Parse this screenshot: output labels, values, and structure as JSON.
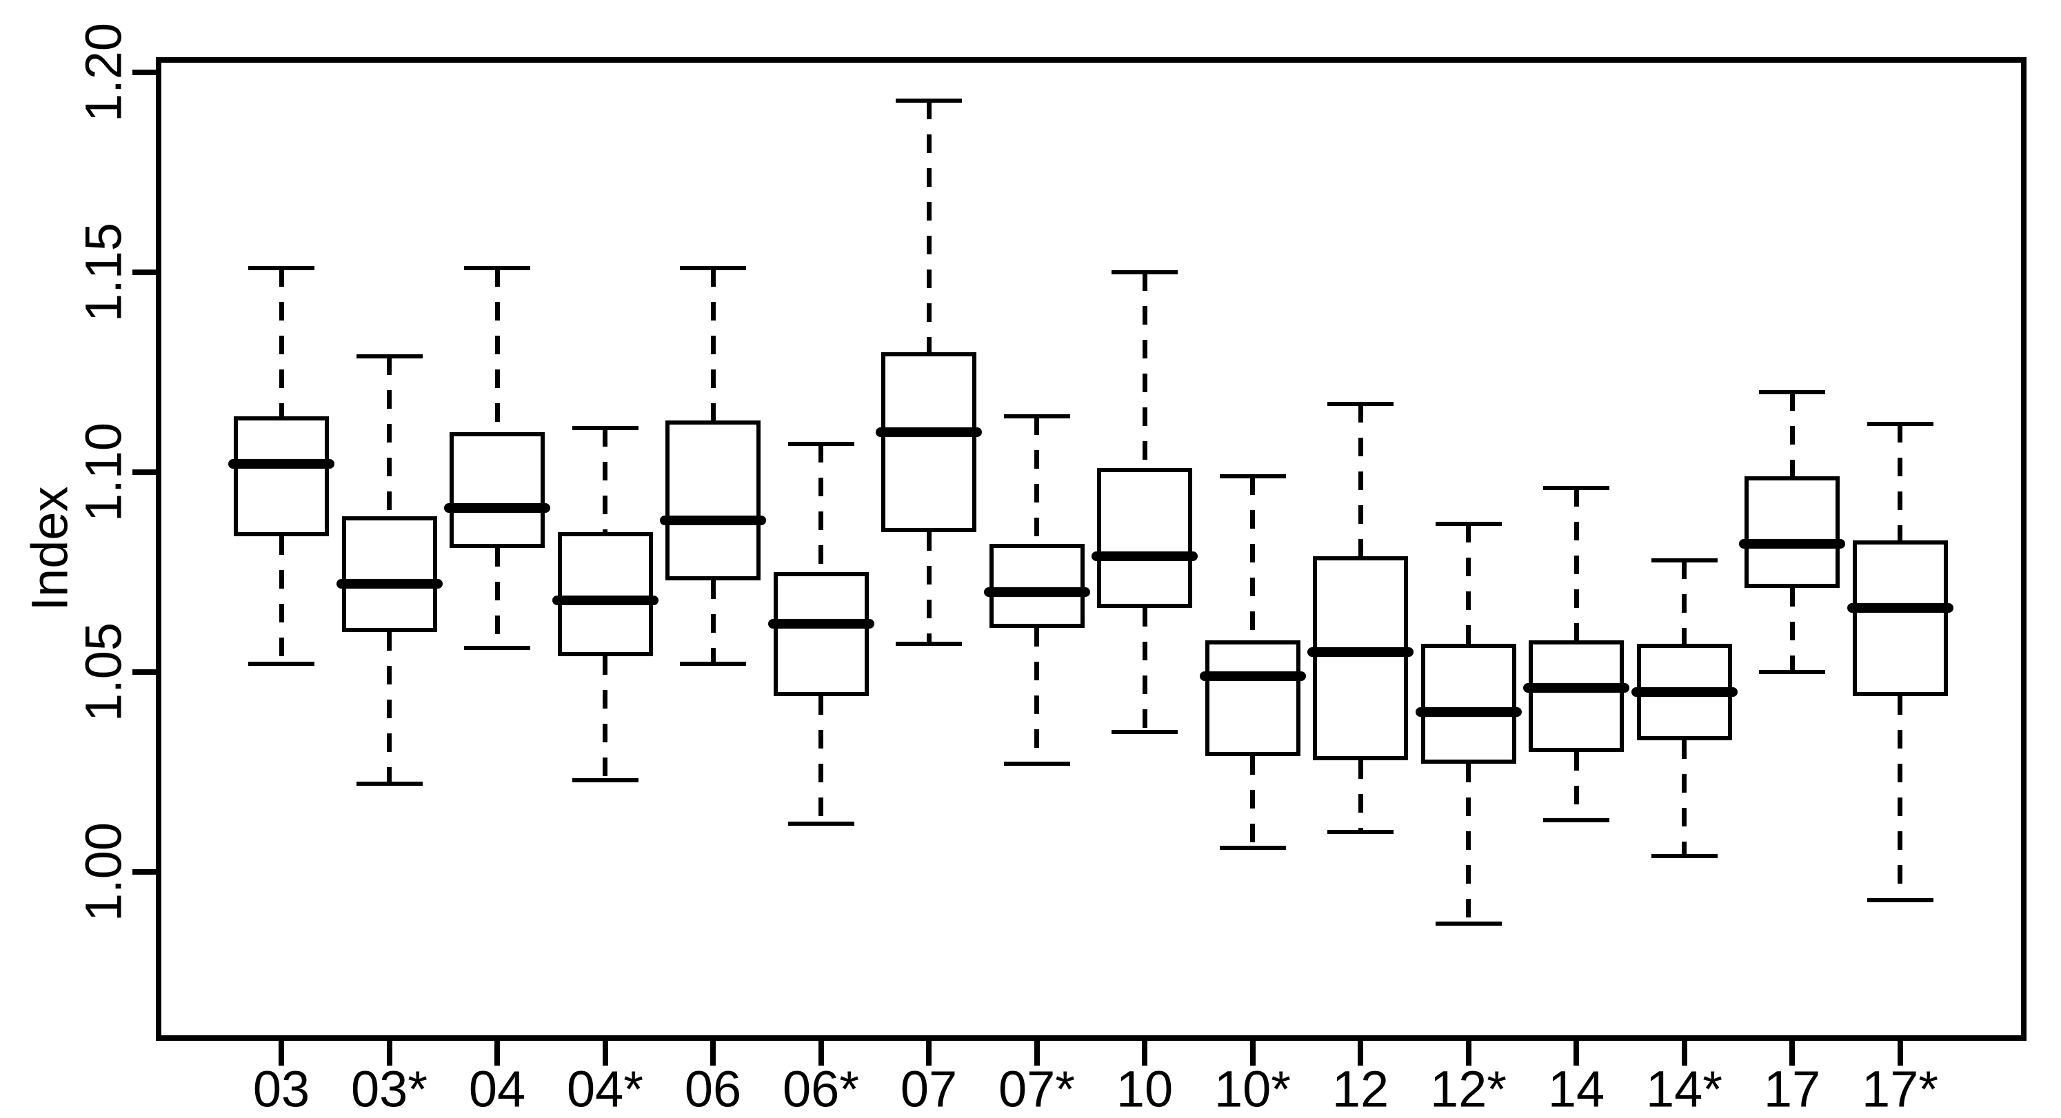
{
  "figure": {
    "background_color": "#ffffff",
    "axis_color": "#000000",
    "y_axis_title": "Index"
  },
  "chart_data": {
    "type": "boxplot",
    "title": "",
    "xlabel": "",
    "ylabel": "Index",
    "grid": false,
    "legend": false,
    "orientation": "vertical",
    "whisker_style": "dashed",
    "ylim": [
      0.958,
      1.203
    ],
    "y_ticks": [
      1.0,
      1.05,
      1.1,
      1.15,
      1.2
    ],
    "y_tick_labels": [
      "1.00",
      "1.05",
      "1.10",
      "1.15",
      "1.20"
    ],
    "categories": [
      "03",
      "03*",
      "04",
      "04*",
      "06",
      "06*",
      "07",
      "07*",
      "10",
      "10*",
      "12",
      "12*",
      "14",
      "14*",
      "17",
      "17*"
    ],
    "boxes": [
      {
        "label": "03",
        "low": 1.052,
        "q1": 1.084,
        "median": 1.102,
        "q3": 1.114,
        "high": 1.151
      },
      {
        "label": "03*",
        "low": 1.022,
        "q1": 1.06,
        "median": 1.072,
        "q3": 1.089,
        "high": 1.129
      },
      {
        "label": "04",
        "low": 1.056,
        "q1": 1.081,
        "median": 1.091,
        "q3": 1.11,
        "high": 1.151
      },
      {
        "label": "04*",
        "low": 1.023,
        "q1": 1.054,
        "median": 1.068,
        "q3": 1.085,
        "high": 1.111
      },
      {
        "label": "06",
        "low": 1.052,
        "q1": 1.073,
        "median": 1.088,
        "q3": 1.113,
        "high": 1.151
      },
      {
        "label": "06*",
        "low": 1.012,
        "q1": 1.044,
        "median": 1.062,
        "q3": 1.075,
        "high": 1.107
      },
      {
        "label": "07",
        "low": 1.057,
        "q1": 1.085,
        "median": 1.11,
        "q3": 1.13,
        "high": 1.193
      },
      {
        "label": "07*",
        "low": 1.027,
        "q1": 1.061,
        "median": 1.07,
        "q3": 1.082,
        "high": 1.114
      },
      {
        "label": "10",
        "low": 1.035,
        "q1": 1.066,
        "median": 1.079,
        "q3": 1.101,
        "high": 1.15
      },
      {
        "label": "10*",
        "low": 1.006,
        "q1": 1.029,
        "median": 1.049,
        "q3": 1.058,
        "high": 1.099
      },
      {
        "label": "12",
        "low": 1.01,
        "q1": 1.028,
        "median": 1.055,
        "q3": 1.079,
        "high": 1.117
      },
      {
        "label": "12*",
        "low": 0.987,
        "q1": 1.027,
        "median": 1.04,
        "q3": 1.057,
        "high": 1.087
      },
      {
        "label": "14",
        "low": 1.013,
        "q1": 1.03,
        "median": 1.046,
        "q3": 1.058,
        "high": 1.096
      },
      {
        "label": "14*",
        "low": 1.004,
        "q1": 1.033,
        "median": 1.045,
        "q3": 1.057,
        "high": 1.078
      },
      {
        "label": "17",
        "low": 1.05,
        "q1": 1.071,
        "median": 1.082,
        "q3": 1.099,
        "high": 1.12
      },
      {
        "label": "17*",
        "low": 0.993,
        "q1": 1.044,
        "median": 1.066,
        "q3": 1.083,
        "high": 1.112
      }
    ]
  }
}
